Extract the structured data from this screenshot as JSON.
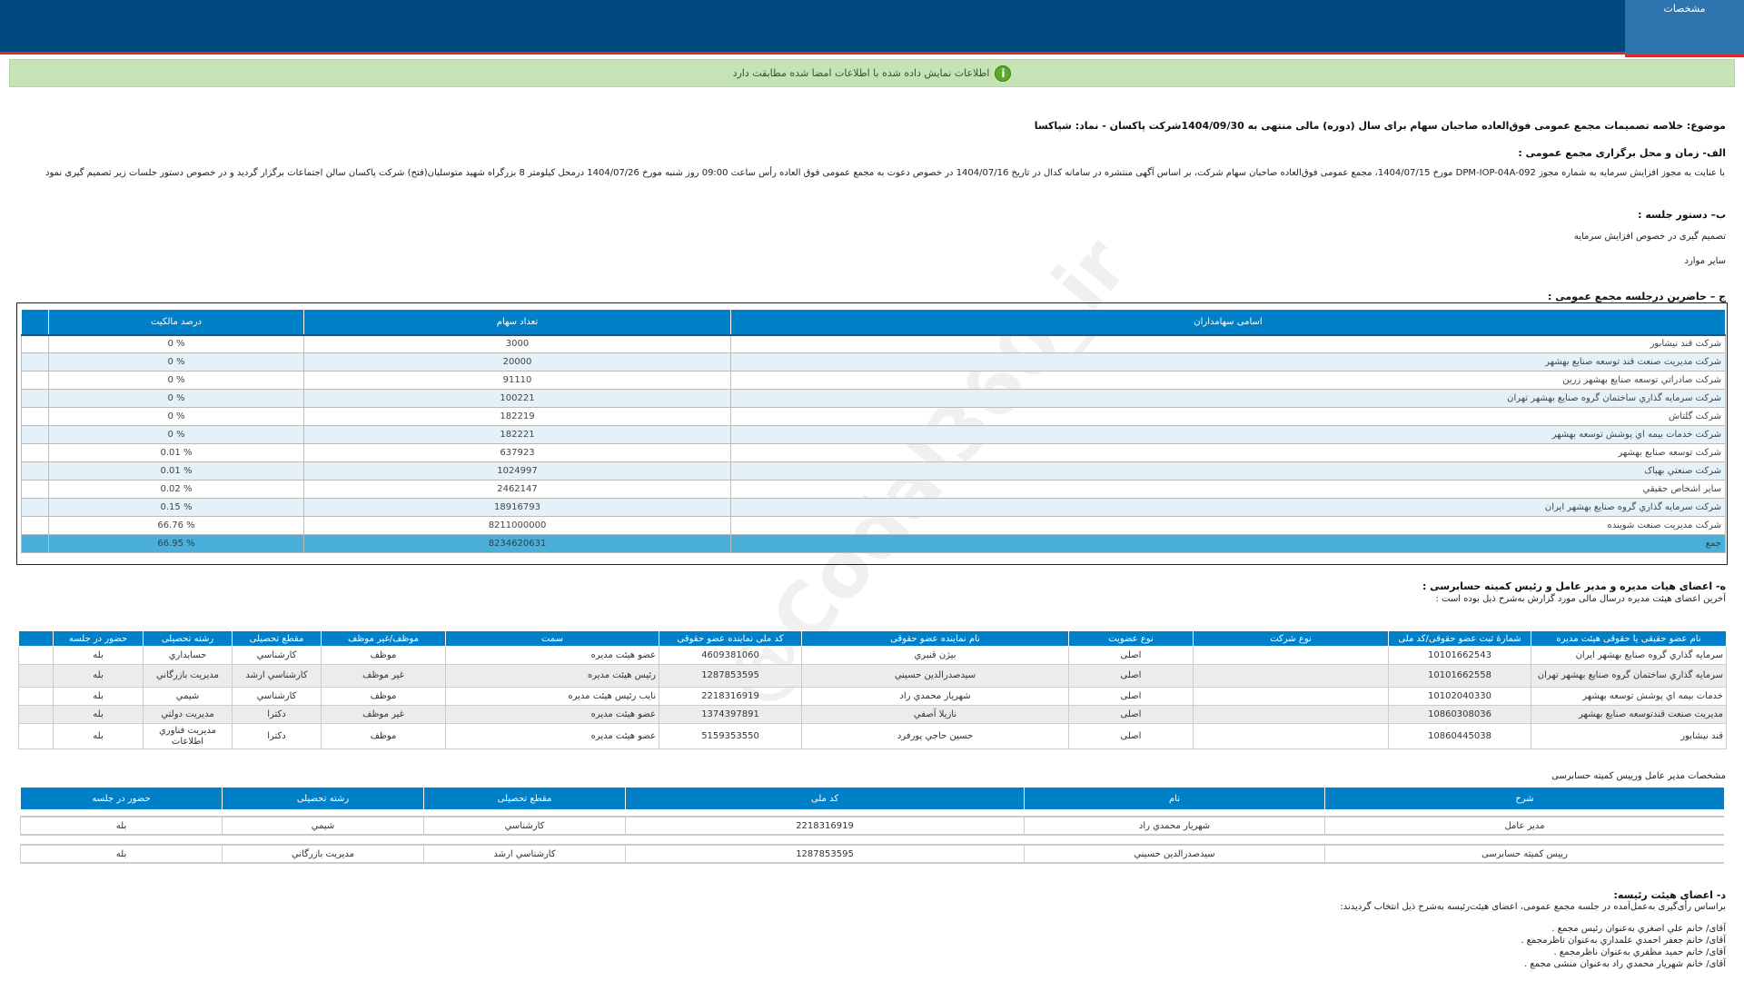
{
  "header": {
    "tab_label": "مشخصات"
  },
  "notice": {
    "icon": "info-icon",
    "text": "اطلاعات نمایش داده شده با اطلاعات امضا شده مطابقت دارد"
  },
  "subject": "موضوع: خلاصه تصمیمات مجمع عمومی فوق‌العاده صاحبان سهام برای سال (دوره) مالی منتهی به 1404/09/30شرکت پاکسان - نماد: شپاکسا",
  "section_a": {
    "title": "الف- زمان و محل برگزاری مجمع عمومی :",
    "text": "با عنایت به مجوز افزایش سرمایه به شماره مجوز DPM-IOP-04A-092 مورخ 1404/07/15، مجمع عمومی فوق‌العاده صاحبان سهام شرکت، بر اساس آگهی منتشره در سامانه کدال در تاریخ 1404/07/16 در خصوص دعوت به مجمع عمومی فوق العاده رأس ساعت 09:00 روز شنبه مورخ 1404/07/26 درمحل کیلومتر 8 بزرگراه شهید متوسلیان(فتح) شرکت پاکسان سالن اجتماعات   برگزار گردید و در خصوص دستور جلسات زیر تصمیم گیری نمود"
  },
  "section_b": {
    "title": "ب– دستور جلسه :",
    "items": [
      "تصمیم گیری در خصوص افزایش سرمایه",
      "سایر موارد"
    ]
  },
  "section_c": {
    "title": "ج – حاضرین درجلسه مجمع عمومی :",
    "headers": [
      "اسامی سهامداران",
      "تعداد سهام",
      "درصد مالکیت"
    ],
    "rows": [
      [
        "شرکت قند نیشابور",
        "3000",
        "% 0"
      ],
      [
        "شرکت مدیریت صنعت قند توسعه صنایع بهشهر",
        "20000",
        "% 0"
      ],
      [
        "شرکت صادراتي توسعه صنايع بهشهر زرين",
        "91110",
        "% 0"
      ],
      [
        "شرکت سرمايه گذاري ساختمان گروه صنايع بهشهر تهران",
        "100221",
        "% 0"
      ],
      [
        "شرکت گلتاش",
        "182219",
        "% 0"
      ],
      [
        "شرکت خدمات بيمه اي پوشش توسعه بهشهر",
        "182221",
        "% 0"
      ],
      [
        "شرکت توسعه صنایع بهشهر",
        "637923",
        "% 0.01"
      ],
      [
        "شرکت صنعتي بهپاک",
        "1024997",
        "% 0.01"
      ],
      [
        "ساير اشخاص حقيقي",
        "2462147",
        "% 0.02"
      ],
      [
        "شرکت سرمايه گذاري گروه صنايع بهشهر ايران",
        "18916793",
        "% 0.15"
      ],
      [
        "شرکت مديريت صنعت شوينده",
        "8211000000",
        "% 66.76"
      ]
    ],
    "total": [
      "جمع",
      "8234620631",
      "% 66.95"
    ]
  },
  "section_e": {
    "title": "ه- اعضای هیات مدیره و مدیر عامل و رئیس کمیته حسابرسی :",
    "subtitle": "آخرین اعضای هیئت مدیره درسال مالی مورد گزارش به‌شرح ذیل بوده است :",
    "headers": [
      "نام عضو حقیقی یا حقوقی هیئت مدیره",
      "شمارۀ ثبت عضو حقوقی/کد ملی",
      "نوع شرکت",
      "نوع عضویت",
      "نام نماینده عضو حقوقی",
      "کد ملی نماینده عضو حقوقی",
      "سمت",
      "موظف/غیر موظف",
      "مقطع تحصیلی",
      "رشته تحصیلی",
      "حضور در جلسه"
    ],
    "rows": [
      [
        "سرمايه گذاري گروه صنايع بهشهر ايران",
        "10101662543",
        "",
        "اصلی",
        "بيژن قنبري",
        "4609381060",
        "عضو هیئت مدیره",
        "موظف",
        "كارشناسي",
        "حسابداري",
        "بله"
      ],
      [
        "سرمايه گذاري ساختمان گروه صنايع بهشهر تهران",
        "10101662558",
        "",
        "اصلی",
        "سيدصدرالدين حسيني",
        "1287853595",
        "رئیس هیئت مدیره",
        "غیر موظف",
        "كارشناسي ارشد",
        "مديريت بازرگاني",
        "بله"
      ],
      [
        "خدمات بيمه اي پوشش توسعه بهشهر",
        "10102040330",
        "",
        "اصلی",
        "شهريار محمدي راد",
        "2218316919",
        "نایب رئیس هیئت مدیره",
        "موظف",
        "كارشناسي",
        "شيمي",
        "بله"
      ],
      [
        "مديريت صنعت قندتوسعه صنايع بهشهر",
        "10860308036",
        "",
        "اصلی",
        "نازيلا آصفي",
        "1374397891",
        "عضو هیئت مدیره",
        "غیر موظف",
        "دكترا",
        "مديريت دولتي",
        "بله"
      ],
      [
        "قند نيشابور",
        "10860445038",
        "",
        "اصلی",
        "حسين حاجي پورفرد",
        "5159353550",
        "عضو هیئت مدیره",
        "موظف",
        "دكترا",
        "مديريت فناوري اطلاعات",
        "بله"
      ]
    ]
  },
  "section_ceo": {
    "title": "مشخصات مدیر عامل ورییس کمیته حسابرسی",
    "headers": [
      "شرح",
      "نام",
      "کد ملی",
      "مقطع تحصیلی",
      "رشته تحصیلی",
      "حضور در جلسه"
    ],
    "rows": [
      [
        "مدیر عامل",
        "شهريار محمدي راد",
        "2218316919",
        "كارشناسي",
        "شيمي",
        "بله"
      ],
      [
        "رییس کمیته حسابرسی",
        "سيدصدرالدين حسيني",
        "1287853595",
        "كارشناسي ارشد",
        "مديريت بازرگاني",
        "بله"
      ]
    ]
  },
  "section_d": {
    "title": "د- اعضای هیئت رئیسه:",
    "text": "براساس رأی‌گیری به‌عمل‌آمده در جلسه مجمع عمومی، اعضای هیئت‌رئیسه به‌شرح ذیل انتخاب گردیدند:",
    "items": [
      "آقای/ خانم  علي اصغري  به‌عنوان رئیس مجمع .",
      "آقای/ خانم  جعفر احمدي علمداري  به‌عنوان ناظرمجمع .",
      "آقای/ خانم  حميد مظفري  به‌عنوان ناظرمجمع .",
      "آقای/ خانم  شهريار محمدي راد  به‌عنوان منشی مجمع ."
    ]
  },
  "watermark": "@Codal360_ir"
}
